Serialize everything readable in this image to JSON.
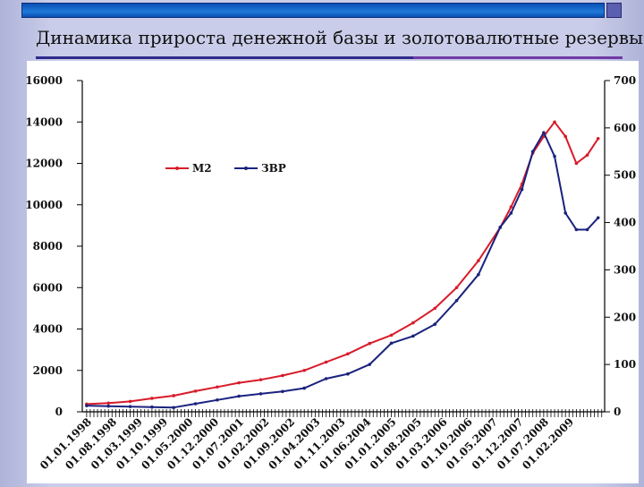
{
  "slide": {
    "title": "Динамика прироста денежной базы и золотовалютные резервы"
  },
  "colors": {
    "m2": "#d81b2a",
    "zvr": "#1a237e",
    "title_rule": "#2e2a8c",
    "top_bar": "#1565c0",
    "plot_background": "#ffffff"
  },
  "chart_data": {
    "type": "line",
    "title": "",
    "xlabel": "",
    "ylabel": "",
    "categories": [
      "01.01.1998",
      "01.08.1998",
      "01.03.1999",
      "01.10.1999",
      "01.05.2000",
      "01.12.2000",
      "01.07.2001",
      "01.02.2002",
      "01.09.2002",
      "01.04.2003",
      "01.11.2003",
      "01.06.2004",
      "01.01.2005",
      "01.08.2005",
      "01.03.2006",
      "01.10.2006",
      "01.05.2007",
      "01.12.2007",
      "01.07.2008",
      "01.02.2009"
    ],
    "x": [
      1998.0,
      1998.58,
      1999.17,
      1999.75,
      2000.33,
      2000.92,
      2001.5,
      2002.08,
      2002.67,
      2003.25,
      2003.83,
      2004.42,
      2005.0,
      2005.58,
      2006.17,
      2006.75,
      2007.33,
      2007.92,
      2008.5,
      2009.08
    ],
    "y_left_ticks": [
      0,
      2000,
      4000,
      6000,
      8000,
      10000,
      12000,
      14000,
      16000
    ],
    "y_right_ticks": [
      0,
      100,
      200,
      300,
      400,
      500,
      600,
      700
    ],
    "ylim_left": [
      0,
      16000
    ],
    "ylim_right": [
      0,
      700
    ],
    "legend_position": "top-center",
    "grid": false,
    "series": [
      {
        "name": "М2",
        "axis": "left",
        "x": [
          1998.0,
          1998.5,
          1999.0,
          1999.5,
          2000.0,
          2000.5,
          2001.0,
          2001.5,
          2002.0,
          2002.5,
          2003.0,
          2003.5,
          2004.0,
          2004.5,
          2005.0,
          2005.5,
          2006.0,
          2006.5,
          2007.0,
          2007.5,
          2007.75,
          2008.0,
          2008.25,
          2008.5,
          2008.75,
          2009.0,
          2009.25,
          2009.5,
          2009.75
        ],
        "values": [
          370,
          420,
          500,
          650,
          780,
          1000,
          1200,
          1400,
          1550,
          1750,
          2000,
          2400,
          2800,
          3300,
          3700,
          4300,
          5000,
          6000,
          7300,
          8900,
          9900,
          11000,
          12500,
          13300,
          14000,
          13300,
          12000,
          12400,
          13200
        ]
      },
      {
        "name": "ЗВР",
        "axis": "right",
        "x": [
          1998.0,
          1998.5,
          1999.0,
          1999.5,
          2000.0,
          2000.5,
          2001.0,
          2001.5,
          2002.0,
          2002.5,
          2003.0,
          2003.5,
          2004.0,
          2004.5,
          2005.0,
          2005.5,
          2006.0,
          2006.5,
          2007.0,
          2007.5,
          2007.75,
          2008.0,
          2008.25,
          2008.5,
          2008.75,
          2009.0,
          2009.25,
          2009.5,
          2009.75
        ],
        "values": [
          13,
          12,
          11,
          10,
          9,
          17,
          25,
          33,
          38,
          43,
          50,
          70,
          80,
          100,
          145,
          160,
          185,
          235,
          290,
          390,
          420,
          470,
          550,
          590,
          540,
          420,
          385,
          385,
          410
        ]
      }
    ]
  }
}
